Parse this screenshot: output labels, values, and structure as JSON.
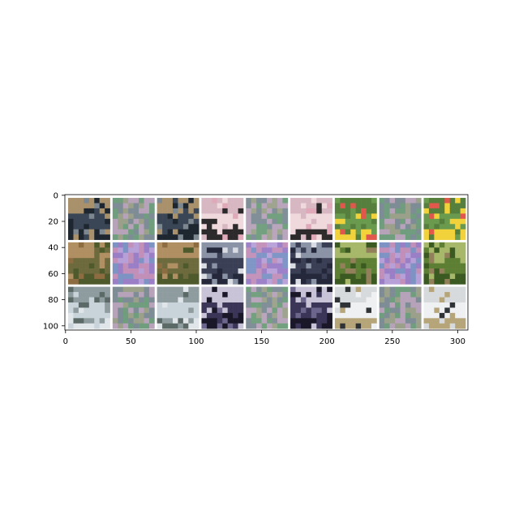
{
  "figure": {
    "background": "#ffffff",
    "axes_frame_color": "#000000",
    "separator_color": "#ffffff"
  },
  "image_grid": {
    "rows": 3,
    "cols": 9,
    "tiles": [
      [
        {
          "kind": "photo",
          "subject": "pickup truck (dark blue, front view)",
          "colors": [
            "#3a4656",
            "#7c8790",
            "#1e2630",
            "#a9916c"
          ]
        },
        {
          "kind": "noise",
          "subject": "adversarial perturbation (vertical stripes)",
          "colors": [
            "#9aa08a",
            "#6f9d7e",
            "#b6a2b9",
            "#7e8c96"
          ]
        },
        {
          "kind": "photo",
          "subject": "pickup truck (dark blue, front view)",
          "colors": [
            "#3a4656",
            "#7c8790",
            "#1e2630",
            "#a9916c"
          ]
        },
        {
          "kind": "photo",
          "subject": "pink toy airplane on dark base",
          "colors": [
            "#f0d9dc",
            "#e0a9b9",
            "#2d2a2c",
            "#d7b8c2"
          ]
        },
        {
          "kind": "noise",
          "subject": "adversarial perturbation (vertical stripes)",
          "colors": [
            "#9ea48e",
            "#73a180",
            "#b9a6bc",
            "#818f99"
          ]
        },
        {
          "kind": "photo",
          "subject": "pink toy airplane on dark base",
          "colors": [
            "#f0d9dc",
            "#e0a9b9",
            "#2d2a2c",
            "#d7b8c2"
          ]
        },
        {
          "kind": "photo",
          "subject": "red and yellow airplane over green grass",
          "colors": [
            "#6a9a4e",
            "#e0584c",
            "#f1d23a",
            "#567f3e"
          ]
        },
        {
          "kind": "noise",
          "subject": "adversarial perturbation (vertical stripes)",
          "colors": [
            "#9aa08a",
            "#6f9d7e",
            "#b6a2b9",
            "#7e8c96"
          ]
        },
        {
          "kind": "photo",
          "subject": "red and yellow airplane over green grass",
          "colors": [
            "#6a9a4e",
            "#e0584c",
            "#f1d23a",
            "#567f3e"
          ]
        }
      ],
      [
        {
          "kind": "photo",
          "subject": "brown horse in grassy field",
          "colors": [
            "#6d6a3d",
            "#8d6c42",
            "#4e5a2c",
            "#b08f63"
          ]
        },
        {
          "kind": "noise",
          "subject": "adversarial perturbation (purple speckle)",
          "colors": [
            "#9a7fc7",
            "#c18fb8",
            "#7d93c4",
            "#b7a0d7"
          ]
        },
        {
          "kind": "photo",
          "subject": "brown horse in grassy field",
          "colors": [
            "#6d6a3d",
            "#8d6c42",
            "#4e5a2c",
            "#b08f63"
          ]
        },
        {
          "kind": "photo",
          "subject": "white SUV in parking lot",
          "colors": [
            "#3b3f55",
            "#d9dde3",
            "#24283a",
            "#8b93a6"
          ]
        },
        {
          "kind": "noise",
          "subject": "adversarial perturbation (purple speckle)",
          "colors": [
            "#9d82c9",
            "#c493bb",
            "#8096c6",
            "#baa3d9"
          ]
        },
        {
          "kind": "photo",
          "subject": "white SUV in parking lot",
          "colors": [
            "#3b3f55",
            "#d9dde3",
            "#24283a",
            "#8b93a6"
          ]
        },
        {
          "kind": "photo",
          "subject": "deer among green foliage",
          "colors": [
            "#5d7f34",
            "#92805a",
            "#3b5a22",
            "#a7b86a"
          ]
        },
        {
          "kind": "noise",
          "subject": "adversarial perturbation (purple speckle)",
          "colors": [
            "#9a7fc7",
            "#c18fb8",
            "#7d93c4",
            "#b7a0d7"
          ]
        },
        {
          "kind": "photo",
          "subject": "deer among green foliage",
          "colors": [
            "#5d7f34",
            "#92805a",
            "#3b5a22",
            "#a7b86a"
          ]
        }
      ],
      [
        {
          "kind": "photo",
          "subject": "ship / hill over pale water under grey sky",
          "colors": [
            "#c9d3da",
            "#5b6a66",
            "#dfe5e8",
            "#8f9c9f"
          ]
        },
        {
          "kind": "noise",
          "subject": "adversarial perturbation (vertical stripes)",
          "colors": [
            "#9aa08a",
            "#6f9d7e",
            "#b6a2b9",
            "#7e8c96"
          ]
        },
        {
          "kind": "photo",
          "subject": "ship / hill over pale water under grey sky",
          "colors": [
            "#c9d3da",
            "#5b6a66",
            "#dfe5e8",
            "#8f9c9f"
          ]
        },
        {
          "kind": "photo",
          "subject": "dark vintage car",
          "colors": [
            "#3b3557",
            "#6d668c",
            "#1a1828",
            "#c9c3d8"
          ]
        },
        {
          "kind": "noise",
          "subject": "adversarial perturbation (vertical stripes)",
          "colors": [
            "#9ea48e",
            "#73a180",
            "#b9a6bc",
            "#818f99"
          ]
        },
        {
          "kind": "photo",
          "subject": "dark vintage car",
          "colors": [
            "#3b3557",
            "#6d668c",
            "#1a1828",
            "#c9c3d8"
          ]
        },
        {
          "kind": "photo",
          "subject": "airliner landing over runway",
          "colors": [
            "#eef0f2",
            "#2f3336",
            "#b7a57a",
            "#d7dadc"
          ]
        },
        {
          "kind": "noise",
          "subject": "adversarial perturbation (vertical stripes)",
          "colors": [
            "#9aa08a",
            "#6f9d7e",
            "#b6a2b9",
            "#7e8c96"
          ]
        },
        {
          "kind": "photo",
          "subject": "airliner landing over runway",
          "colors": [
            "#eef0f2",
            "#2f3336",
            "#b7a57a",
            "#d7dadc"
          ]
        }
      ]
    ]
  },
  "axes": {
    "x_ticks": [
      "0",
      "50",
      "100",
      "150",
      "200",
      "250",
      "300"
    ],
    "y_ticks": [
      "0",
      "20",
      "40",
      "60",
      "80",
      "100"
    ]
  }
}
